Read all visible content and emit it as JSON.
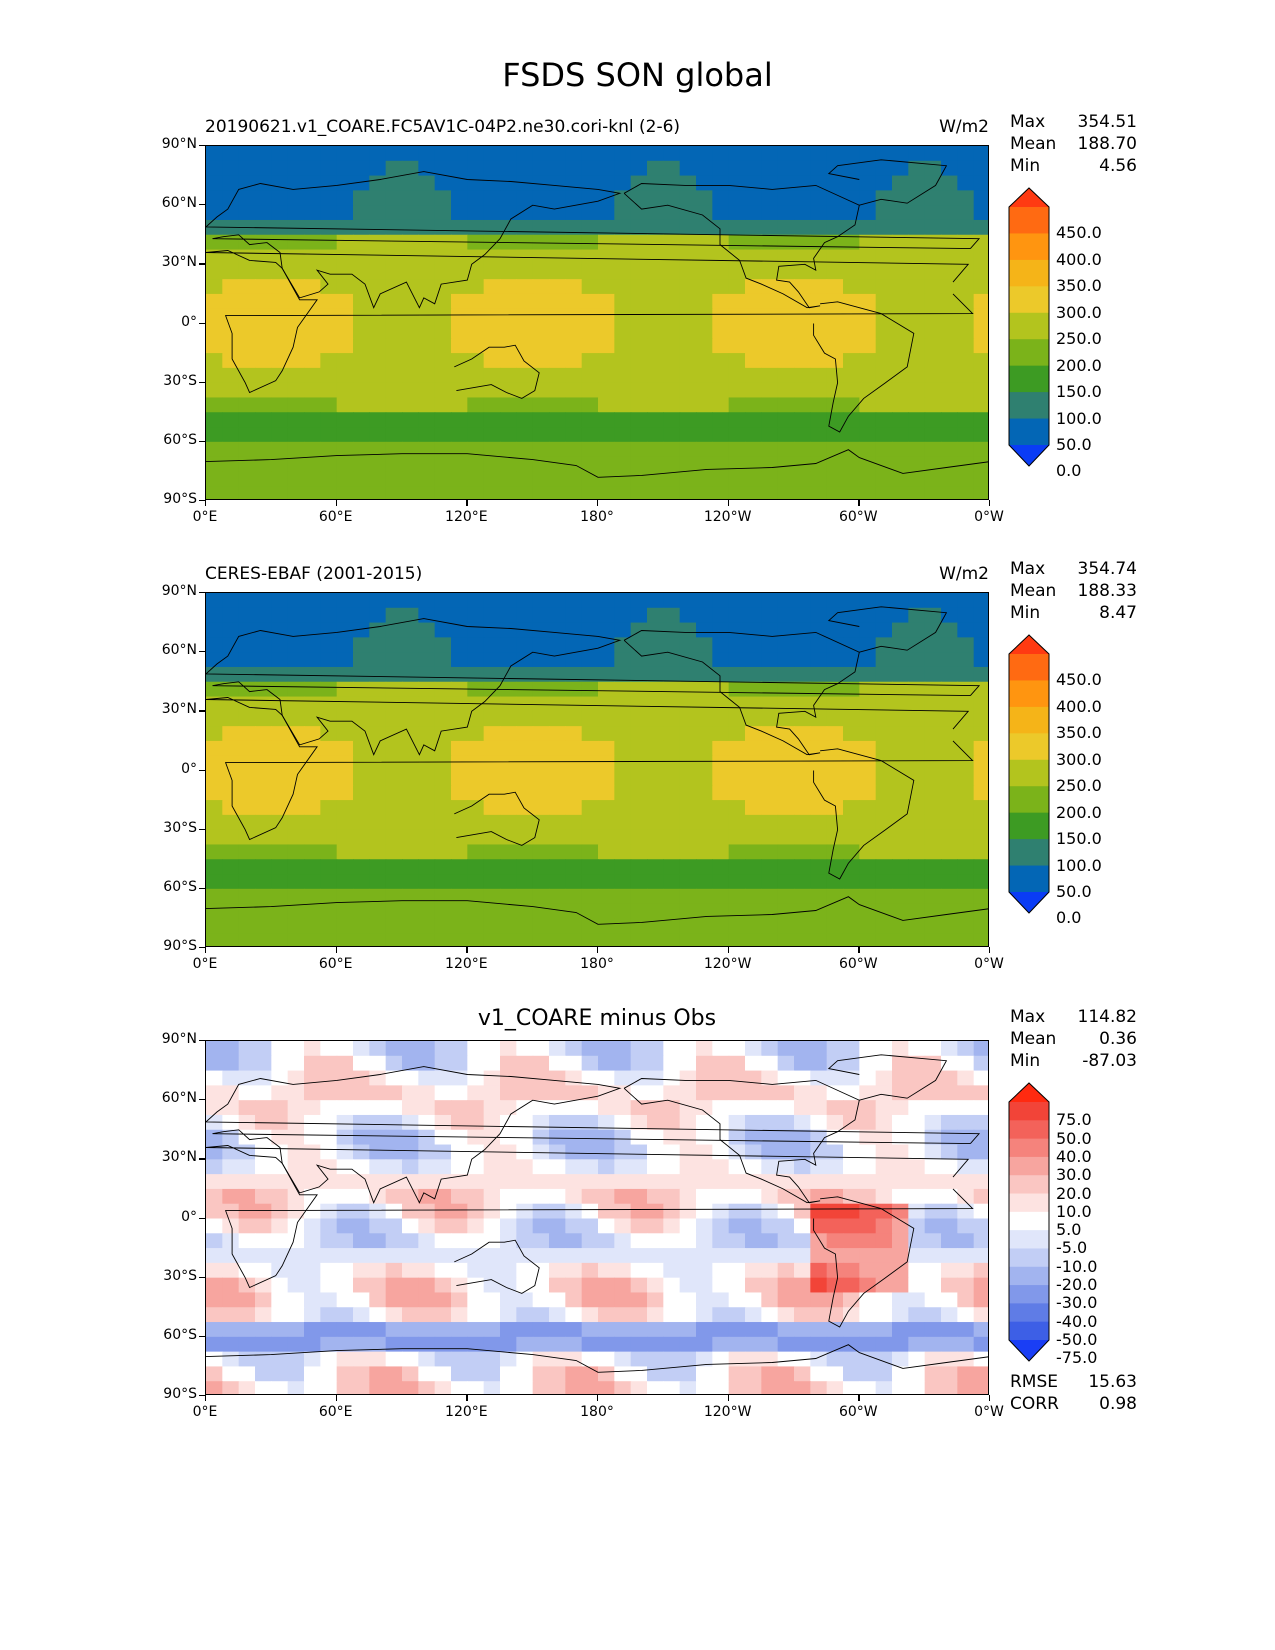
{
  "figure": {
    "title": "FSDS SON global"
  },
  "axes": {
    "lat_ticks": [
      "90°N",
      "60°N",
      "30°N",
      "0°",
      "30°S",
      "60°S",
      "90°S"
    ],
    "lon_ticks": [
      "0°E",
      "60°E",
      "120°E",
      "180°",
      "120°W",
      "60°W",
      "0°W"
    ]
  },
  "panels": [
    {
      "id": "model",
      "title_left": "20190621.v1_COARE.FC5AV1C-04P2.ne30.cori-knl (2-6)",
      "title_right": "W/m2",
      "title_center": "",
      "stats": {
        "max_label": "Max",
        "max": "354.51",
        "mean_label": "Mean",
        "mean": "188.70",
        "min_label": "Min",
        "min": "4.56"
      },
      "colorbar": {
        "labels": [
          "450.0",
          "400.0",
          "350.0",
          "300.0",
          "250.0",
          "200.0",
          "150.0",
          "100.0",
          "50.0",
          "0.0"
        ],
        "colors": [
          "#ff3a12",
          "#ff6a12",
          "#ff9510",
          "#f5b418",
          "#ecc92a",
          "#b3c41e",
          "#7bb31a",
          "#3d9b23",
          "#2f8070",
          "#0366b5",
          "#0a3cf5"
        ]
      },
      "field": "sw_clim"
    },
    {
      "id": "obs",
      "title_left": "CERES-EBAF (2001-2015)",
      "title_right": "W/m2",
      "title_center": "",
      "stats": {
        "max_label": "Max",
        "max": "354.74",
        "mean_label": "Mean",
        "mean": "188.33",
        "min_label": "Min",
        "min": "8.47"
      },
      "colorbar": {
        "labels": [
          "450.0",
          "400.0",
          "350.0",
          "300.0",
          "250.0",
          "200.0",
          "150.0",
          "100.0",
          "50.0",
          "0.0"
        ],
        "colors": [
          "#ff3a12",
          "#ff6a12",
          "#ff9510",
          "#f5b418",
          "#ecc92a",
          "#b3c41e",
          "#7bb31a",
          "#3d9b23",
          "#2f8070",
          "#0366b5",
          "#0a3cf5"
        ]
      },
      "field": "sw_clim"
    },
    {
      "id": "diff",
      "title_left": "",
      "title_right": "",
      "title_center": "v1_COARE minus Obs",
      "stats": {
        "max_label": "Max",
        "max": "114.82",
        "mean_label": "Mean",
        "mean": "0.36",
        "min_label": "Min",
        "min": "-87.03"
      },
      "extra_stats": {
        "rmse_label": "RMSE",
        "rmse": "15.63",
        "corr_label": "CORR",
        "corr": "0.98"
      },
      "colorbar": {
        "labels": [
          "75.0",
          "50.0",
          "40.0",
          "30.0",
          "20.0",
          "10.0",
          "5.0",
          "-5.0",
          "-10.0",
          "-20.0",
          "-30.0",
          "-40.0",
          "-50.0",
          "-75.0"
        ],
        "colors": [
          "#ff2a10",
          "#f24438",
          "#f3625a",
          "#f5837c",
          "#f7a59f",
          "#fac6c2",
          "#fde3e1",
          "#ffffff",
          "#e0e6fa",
          "#c2cef5",
          "#a2b4ef",
          "#8198ea",
          "#5f7ce6",
          "#3d5fe6",
          "#1a3ef5"
        ]
      },
      "field": "diff"
    }
  ]
}
